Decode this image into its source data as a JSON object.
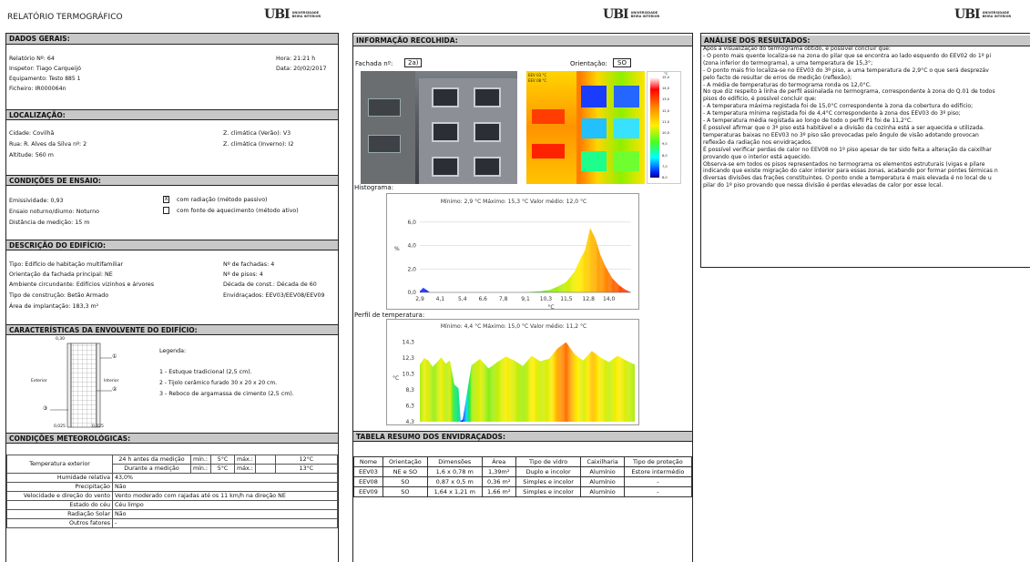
{
  "report_title": "RELATÓRIO TERMOGRÁFICO",
  "logo": {
    "mark": "UBI",
    "line1": "UNIVERSIDADE",
    "line2": "BEIRA INTERIOR"
  },
  "general": {
    "header": "DADOS GERAIS:",
    "report_no": "Relatório Nº:  64",
    "inspector": "Inspetor:  Tiago Carqueijó",
    "equipment": "Equipamento:  Testo 885   1",
    "file": "Ficheiro:  IR000064n",
    "time": "Hora:  21:21 h",
    "date": "Data:  20/02/2017"
  },
  "location": {
    "header": "LOCALIZAÇÃO:",
    "city": "Cidade:  Covilhã",
    "street": "Rua:  R. Alves da Silva nº: 2",
    "altitude": "Altitude:  560 m",
    "zone_summer": "Z. climática (Verão):    V3",
    "zone_winter": "Z. climática (Inverno):    I2"
  },
  "test_conditions": {
    "header": "CONDIÇÕES DE ENSAIO:",
    "emissivity": "Emissividade:  0,93",
    "day_night": "Ensaio noturno/diurno:    Noturno",
    "distance": "Distância de medição:  15 m",
    "option1_mark": "X",
    "option1": "com radiação (método passivo)",
    "option2_mark": "",
    "option2": "com fonte de aquecimento (método ativo)"
  },
  "building": {
    "header": "DESCRIÇÃO DO EDIFÍCIO:",
    "type": "Tipo:  Edifício de habitação multifamiliar",
    "orientation": "Orientação da fachada principal:   NE",
    "surroundings": "Ambiente circundante:   Edifícios vizinhos e árvores",
    "construction": "Tipo de construção:  Betão Armado",
    "area": "Área de implantação:   183,3 m²",
    "facades": "Nº de fachadas:   4",
    "floors": "Nº de pisos:   4",
    "decade": "Década de const.:  Década de 60",
    "windows": "Envidraçados:   EEV03/EEV08/EEV09"
  },
  "envelope": {
    "header": "CARACTERÍSTICAS DA ENVOLVENTE DO EDIFÍCIO:",
    "legend_title": "Legenda:",
    "items": [
      "1 - Estuque tradicional (2,5 cm).",
      "2 - Tijolo cerâmico furado 30 x 20 x 20 cm.",
      "3 - Reboco de argamassa de cimento (2,5 cm)."
    ],
    "label_exterior": "Exterior",
    "label_interior": "Interior",
    "dim_top": "0,30",
    "dim_left": "0,025",
    "dim_right": "0,025",
    "n1": "①",
    "n2": "②",
    "n3": "③"
  },
  "weather": {
    "header": "CONDIÇÕES METEOROLÓGICAS:",
    "temp_label": "Temperatura exterior",
    "before_label": "24 h antes da medição",
    "during_label": "Durante a medição",
    "min_label": "mín.:",
    "max_label": "máx.:",
    "before_min": "5°C",
    "before_max": "12°C",
    "during_min": "5°C",
    "during_max": "13°C",
    "rows": [
      {
        "label": "Humidade relativa",
        "value": "43,0%"
      },
      {
        "label": "Precipitação",
        "value": "Não"
      },
      {
        "label": "Velocidade e direção do vento",
        "value": "Vento moderado com rajadas até os 11 km/h na direção NE"
      },
      {
        "label": "Estado do céu",
        "value": "Céu limpo"
      },
      {
        "label": "Radiação Solar",
        "value": "Não"
      },
      {
        "label": "Outros fatores",
        "value": "-"
      }
    ]
  },
  "collected": {
    "header": "INFORMAÇÃO RECOLHIDA:",
    "facade_label": "Fachada nº:",
    "facade_value": "2a)",
    "orientation_label": "Orientação:",
    "orientation_value": "SO",
    "thermo_tag1": "EEV 03 °C",
    "thermo_tag2": "EEV 08 °C",
    "scale_ticks": [
      "15,0",
      "14,0",
      "13,0",
      "12,0",
      "11,0",
      "10,0",
      "9,0",
      "8,0",
      "7,0",
      "6,0"
    ],
    "scale_unit": "°C",
    "histogram_label": "Histograma:",
    "profile_label": "Perfil de temperatura:"
  },
  "chart_data": [
    {
      "type": "area",
      "title": "Mínimo: 2,9 °C Máximo: 15,3 °C Valor médio: 12,0 °C",
      "ylabel": "%",
      "xlabel": "°C",
      "x_ticks": [
        "2,9",
        "4,1",
        "5,4",
        "6,6",
        "7,8",
        "9,1",
        "10,3",
        "11,5",
        "12,8",
        "14,0"
      ],
      "y_ticks": [
        "0,0",
        "2,0",
        "4,0",
        "6,0"
      ],
      "xlim": [
        2.9,
        15.3
      ],
      "ylim": [
        0,
        7
      ],
      "x": [
        2.9,
        3.1,
        3.5,
        5.0,
        7.0,
        9.0,
        10.0,
        10.5,
        11.0,
        11.5,
        12.0,
        12.3,
        12.6,
        12.9,
        13.2,
        13.5,
        13.8,
        14.2,
        14.6,
        15.0,
        15.3
      ],
      "values": [
        0.1,
        0.4,
        0.0,
        0.0,
        0.0,
        0.0,
        0.1,
        0.2,
        0.5,
        0.9,
        1.8,
        2.8,
        3.6,
        5.5,
        4.6,
        3.2,
        2.2,
        1.2,
        0.6,
        0.2,
        0.0
      ]
    },
    {
      "type": "area",
      "title": "Mínimo: 4,4 °C Máximo: 15,0 °C Valor médio: 11,2 °C",
      "ylabel": "°C",
      "y_ticks": [
        "4,3",
        "6,3",
        "8,3",
        "10,3",
        "12,3",
        "14,3"
      ],
      "ylim": [
        4.3,
        15.3
      ],
      "x": [
        0,
        2,
        4,
        6,
        8,
        10,
        12,
        14,
        16,
        18,
        19,
        20,
        24,
        28,
        32,
        36,
        40,
        44,
        48,
        52,
        56,
        60,
        64,
        68,
        72,
        76,
        80,
        84,
        88,
        92,
        96,
        100
      ],
      "values": [
        11.5,
        12.3,
        12.0,
        11.2,
        11.8,
        12.4,
        11.6,
        12.0,
        9.0,
        8.5,
        4.4,
        4.6,
        11.4,
        12.2,
        11.0,
        11.8,
        12.5,
        12.0,
        11.3,
        12.6,
        11.9,
        12.2,
        13.5,
        14.3,
        12.8,
        12.0,
        13.2,
        12.4,
        11.8,
        12.6,
        12.0,
        11.5
      ]
    }
  ],
  "glazing": {
    "header": "TABELA RESUMO DOS ENVIDRAÇADOS:",
    "columns": [
      "Nome",
      "Orientação",
      "Dimensões",
      "Área",
      "Tipo de vidro",
      "Caixilharia",
      "Tipo de proteção"
    ],
    "rows": [
      [
        "EEV03",
        "NE e SO",
        "1,6 x 0,78 m",
        "1,39m²",
        "Duplo e incolor",
        "Alumínio",
        "Estore intermédio"
      ],
      [
        "EEV08",
        "SO",
        "0,87 x 0,5 m",
        "0,36 m²",
        "Simples e incolor",
        "Alumínio",
        "-"
      ],
      [
        "EEV09",
        "SO",
        "1,64 x 1,21 m",
        "1,66 m²",
        "Simples e incolor",
        "Alumínio",
        "-"
      ]
    ]
  },
  "analysis": {
    "header": "ANÁLISE DOS RESULTADOS:",
    "lines": [
      "Após a visualização do termograma obtido, é possível concluir que:",
      "- O ponto mais quente localiza-se na zona do pilar que se encontra ao lado esquerdo do EEV02 do 1º pi",
      "(zona inferior do termograma), a uma temperatura de 15,3°;",
      "- O ponto mais frio localiza-se no EEV03 do 3º piso, a uma temperatura de 2,9°C o que será desprezáv",
      "pelo facto de resultar de erros de medição (reflexão);",
      "- A média de temperaturas do termograma ronda os 12,0°C.",
      "No que diz respeito à linha de perfil assinalada no termograma, correspondente à zona do Q.01 de todos",
      "pisos do edifício, é possível concluir que:",
      "- A temperatura máxima registada foi de 15,0°C correspondente à zona da cobertura do edifício;",
      "- A temperatura mínima registada foi de 4,4°C correspondente à zona dos EEV03 do 3º piso;",
      "- A temperatura média registada ao longo de todo o perfil P1 foi de 11,2°C.",
      "É possível afirmar que o 3º piso está habitável e a divisão da cozinha está a ser aquecida e utilizada.",
      "temperaturas baixas no EEV03 no 3º piso são provocadas pelo ângulo de visão adotando provocan",
      "reflexão da radiação nos envidraçados.",
      "É possível verificar perdas de calor no EEV08 no 1º piso apesar de ter sido feita a alteração da caixilhar",
      "provando que o interior está aquecido.",
      "Observa-se em todos os pisos representados no termograma os elementos estruturais (vigas e pilare",
      "indicando que existe migração do calor interior para essas zonas, acabando por formar pontes térmicas n",
      "diversas divisões das frações constituintes. O ponto onde a temperatura é mais elevada é no local de u",
      "pilar do 1º piso provando que nessa divisão é perdas elevadas de calor por esse local."
    ]
  }
}
